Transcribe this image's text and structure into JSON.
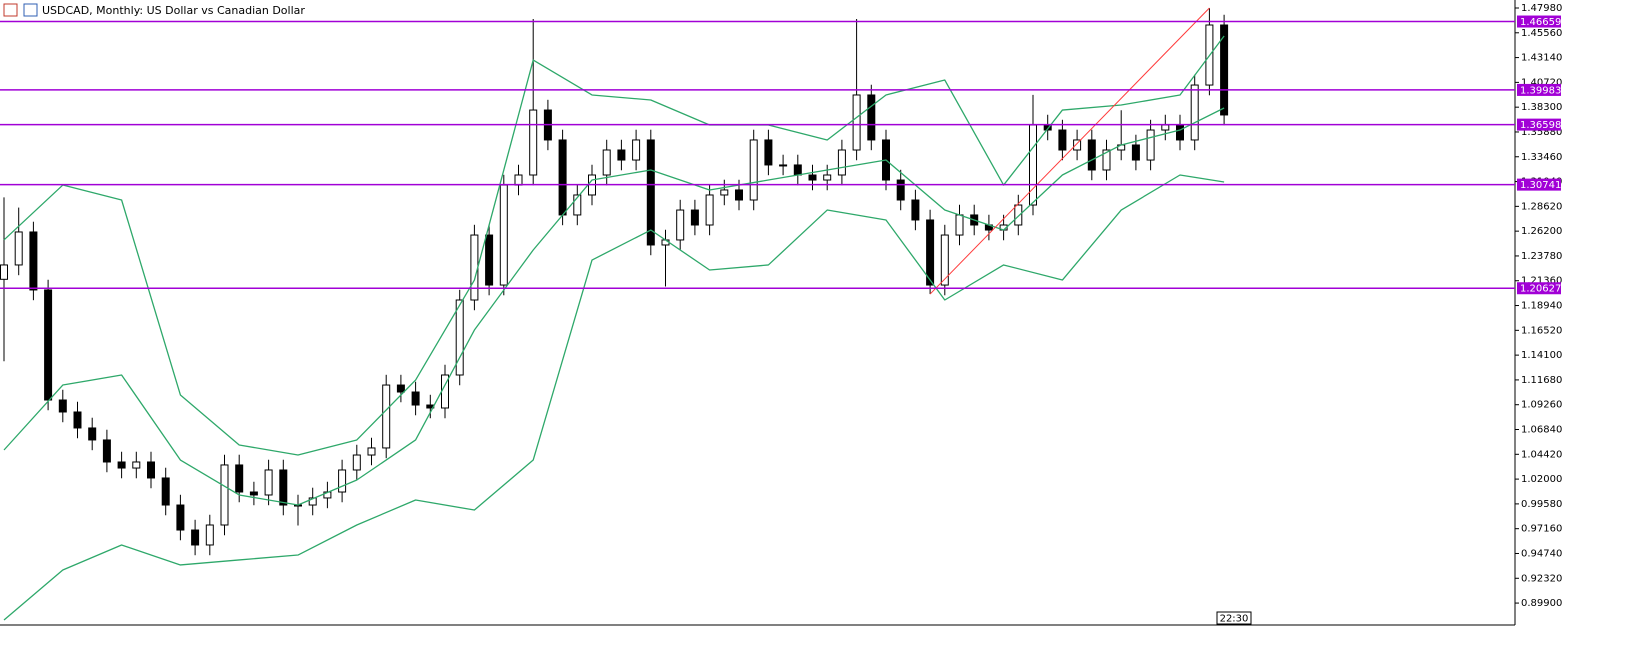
{
  "chart_data": {
    "type": "candlestick",
    "title": "USDCAD, Monthly:  US Dollar vs Canadian Dollar",
    "timer": "22:30",
    "ylim": [
      0.8776,
      1.4876
    ],
    "yticks": [
      {
        "value": 1.4798,
        "label": "1.47980"
      },
      {
        "value": 1.4556,
        "label": "1.45560"
      },
      {
        "value": 1.4314,
        "label": "1.43140"
      },
      {
        "value": 1.4072,
        "label": "1.40720"
      },
      {
        "value": 1.383,
        "label": "1.38300"
      },
      {
        "value": 1.3588,
        "label": "1.35880"
      },
      {
        "value": 1.3346,
        "label": "1.33460"
      },
      {
        "value": 1.3104,
        "label": "1.31040"
      },
      {
        "value": 1.2862,
        "label": "1.28620"
      },
      {
        "value": 1.262,
        "label": "1.26200"
      },
      {
        "value": 1.2378,
        "label": "1.23780"
      },
      {
        "value": 1.2136,
        "label": "1.21360"
      },
      {
        "value": 1.1894,
        "label": "1.18940"
      },
      {
        "value": 1.1652,
        "label": "1.16520"
      },
      {
        "value": 1.141,
        "label": "1.14100"
      },
      {
        "value": 1.1168,
        "label": "1.11680"
      },
      {
        "value": 1.0926,
        "label": "1.09260"
      },
      {
        "value": 1.0684,
        "label": "1.06840"
      },
      {
        "value": 1.0442,
        "label": "1.04420"
      },
      {
        "value": 1.02,
        "label": "1.02000"
      },
      {
        "value": 0.9958,
        "label": "0.99580"
      },
      {
        "value": 0.9716,
        "label": "0.97160"
      },
      {
        "value": 0.9474,
        "label": "0.94740"
      },
      {
        "value": 0.9232,
        "label": "0.92320"
      },
      {
        "value": 0.899,
        "label": "0.89900"
      }
    ],
    "up_color": "#ffffff",
    "down_color": "#000000",
    "ohlc": [
      [
        1.215,
        1.295,
        1.135,
        1.229
      ],
      [
        1.229,
        1.285,
        1.219,
        1.2612
      ],
      [
        1.2612,
        1.2712,
        1.1946,
        1.2046
      ],
      [
        1.2046,
        1.2146,
        1.0872,
        1.0972
      ],
      [
        1.0972,
        1.1072,
        1.0755,
        1.0855
      ],
      [
        1.0855,
        1.0955,
        1.0599,
        1.0699
      ],
      [
        1.0699,
        1.0799,
        1.0482,
        1.0582
      ],
      [
        1.0582,
        1.0682,
        1.0267,
        1.0367
      ],
      [
        1.0367,
        1.0467,
        1.0208,
        1.0308
      ],
      [
        1.0308,
        1.0467,
        1.0208,
        1.0367
      ],
      [
        1.0367,
        1.0467,
        1.0111,
        1.0211
      ],
      [
        1.0211,
        1.0311,
        0.9847,
        0.9947
      ],
      [
        0.9947,
        1.0047,
        0.9603,
        0.9703
      ],
      [
        0.9703,
        0.9803,
        0.9457,
        0.9557
      ],
      [
        0.9557,
        0.9852,
        0.9457,
        0.9752
      ],
      [
        0.9752,
        1.0438,
        0.9652,
        1.0338
      ],
      [
        1.0338,
        1.0438,
        0.9974,
        1.0074
      ],
      [
        1.0074,
        1.0174,
        0.9945,
        1.0045
      ],
      [
        1.0045,
        1.0389,
        0.9945,
        1.0289
      ],
      [
        1.0289,
        1.0389,
        0.9847,
        0.9947
      ],
      [
        0.9947,
        1.0047,
        0.9747,
        0.9947
      ],
      [
        0.9947,
        1.0116,
        0.9847,
        1.0016
      ],
      [
        1.0016,
        1.0174,
        0.9916,
        1.0074
      ],
      [
        1.0074,
        1.0389,
        0.9974,
        1.0289
      ],
      [
        1.0289,
        1.0535,
        1.0189,
        1.0435
      ],
      [
        1.0435,
        1.0604,
        1.0335,
        1.0504
      ],
      [
        1.0504,
        1.1218,
        1.0404,
        1.1118
      ],
      [
        1.1118,
        1.1218,
        1.095,
        1.105
      ],
      [
        1.105,
        1.115,
        1.0823,
        1.0923
      ],
      [
        1.0923,
        1.1023,
        1.0794,
        1.0894
      ],
      [
        1.0894,
        1.1316,
        1.0794,
        1.1216
      ],
      [
        1.1216,
        1.2048,
        1.1116,
        1.1948
      ],
      [
        1.1948,
        1.2682,
        1.1848,
        1.2582
      ],
      [
        1.2582,
        1.2682,
        1.1994,
        1.2094
      ],
      [
        1.2094,
        1.317,
        1.1994,
        1.307
      ],
      [
        1.307,
        1.3268,
        1.297,
        1.3168
      ],
      [
        1.3168,
        1.469,
        1.3068,
        1.3802
      ],
      [
        1.3802,
        1.3902,
        1.341,
        1.351
      ],
      [
        1.351,
        1.361,
        1.2678,
        1.2778
      ],
      [
        1.2778,
        1.3073,
        1.2678,
        1.2973
      ],
      [
        1.2973,
        1.3268,
        1.2873,
        1.3168
      ],
      [
        1.3168,
        1.3512,
        1.3068,
        1.3412
      ],
      [
        1.3412,
        1.3512,
        1.3214,
        1.3314
      ],
      [
        1.3314,
        1.361,
        1.3214,
        1.351
      ],
      [
        1.351,
        1.361,
        1.2385,
        1.2485
      ],
      [
        1.2485,
        1.2634,
        1.208,
        1.2534
      ],
      [
        1.2534,
        1.2926,
        1.2434,
        1.2826
      ],
      [
        1.2826,
        1.2926,
        1.258,
        1.268
      ],
      [
        1.268,
        1.3073,
        1.258,
        1.2973
      ],
      [
        1.2973,
        1.3122,
        1.2873,
        1.3022
      ],
      [
        1.3022,
        1.3122,
        1.2824,
        1.2924
      ],
      [
        1.2924,
        1.361,
        1.2824,
        1.351
      ],
      [
        1.351,
        1.361,
        1.3166,
        1.3266
      ],
      [
        1.3266,
        1.3366,
        1.3166,
        1.3266
      ],
      [
        1.3266,
        1.3366,
        1.3068,
        1.3168
      ],
      [
        1.3168,
        1.3268,
        1.3019,
        1.3119
      ],
      [
        1.3119,
        1.3268,
        1.3019,
        1.3168
      ],
      [
        1.3168,
        1.3512,
        1.3068,
        1.3412
      ],
      [
        1.3412,
        1.469,
        1.3312,
        1.3949
      ],
      [
        1.3949,
        1.4049,
        1.341,
        1.351
      ],
      [
        1.351,
        1.361,
        1.3019,
        1.3119
      ],
      [
        1.3119,
        1.3219,
        1.2824,
        1.2924
      ],
      [
        1.2924,
        1.3024,
        1.2629,
        1.2729
      ],
      [
        1.2729,
        1.2829,
        1.2006,
        1.2094
      ],
      [
        1.2094,
        1.2682,
        1.1994,
        1.2582
      ],
      [
        1.2582,
        1.2878,
        1.2482,
        1.2778
      ],
      [
        1.2778,
        1.2878,
        1.258,
        1.268
      ],
      [
        1.268,
        1.278,
        1.2531,
        1.2631
      ],
      [
        1.2631,
        1.278,
        1.2531,
        1.268
      ],
      [
        1.268,
        1.2975,
        1.258,
        1.2875
      ],
      [
        1.2875,
        1.395,
        1.2775,
        1.3656
      ],
      [
        1.3656,
        1.3756,
        1.3507,
        1.3607
      ],
      [
        1.3607,
        1.3707,
        1.3312,
        1.3412
      ],
      [
        1.3412,
        1.361,
        1.3312,
        1.351
      ],
      [
        1.351,
        1.361,
        1.3117,
        1.3217
      ],
      [
        1.3217,
        1.3512,
        1.3117,
        1.3412
      ],
      [
        1.3412,
        1.38,
        1.3312,
        1.3461
      ],
      [
        1.3461,
        1.3561,
        1.3214,
        1.3314
      ],
      [
        1.3314,
        1.3707,
        1.3214,
        1.3607
      ],
      [
        1.3607,
        1.3756,
        1.3507,
        1.3656
      ],
      [
        1.3656,
        1.3756,
        1.341,
        1.351
      ],
      [
        1.351,
        1.4146,
        1.341,
        1.4046
      ],
      [
        1.4046,
        1.4798,
        1.3946,
        1.4632
      ],
      [
        1.4632,
        1.4732,
        1.3654,
        1.3754
      ]
    ],
    "bands": {
      "color": "#2ea86a",
      "x": [
        0,
        4,
        8,
        12,
        16,
        20,
        24,
        28,
        32,
        36,
        40,
        44,
        48,
        52,
        56,
        60,
        64,
        68,
        72,
        76,
        80,
        83
      ],
      "upper": [
        1.2534,
        1.307,
        1.2924,
        1.1021,
        1.0533,
        1.0435,
        1.0582,
        1.1167,
        1.2143,
        1.429,
        1.3949,
        1.39,
        1.3656,
        1.3656,
        1.351,
        1.3949,
        1.4095,
        1.307,
        1.3802,
        1.3851,
        1.3949,
        1.4525
      ],
      "middle": [
        1.0484,
        1.1118,
        1.1216,
        1.0386,
        1.0045,
        0.9947,
        1.0191,
        1.0582,
        1.1655,
        1.2436,
        1.3119,
        1.3217,
        1.3022,
        1.3119,
        1.3217,
        1.3314,
        1.2826,
        1.2631,
        1.3168,
        1.3461,
        1.3607,
        1.3822
      ],
      "lower": [
        0.8825,
        0.9313,
        0.9557,
        0.9362,
        0.9411,
        0.9459,
        0.9752,
        0.9996,
        0.9898,
        1.0386,
        1.2338,
        1.2631,
        1.2241,
        1.229,
        1.2826,
        1.2729,
        1.1948,
        1.229,
        1.2143,
        1.2826,
        1.3168,
        1.31
      ]
    },
    "levels": {
      "color": "#a100d6",
      "values": [
        1.46659,
        1.39983,
        1.36598,
        1.30741,
        1.20627
      ]
    },
    "trendline": {
      "color": "#ff3b3b",
      "x": [
        63,
        82
      ],
      "values": [
        1.2006,
        1.4798
      ]
    }
  }
}
